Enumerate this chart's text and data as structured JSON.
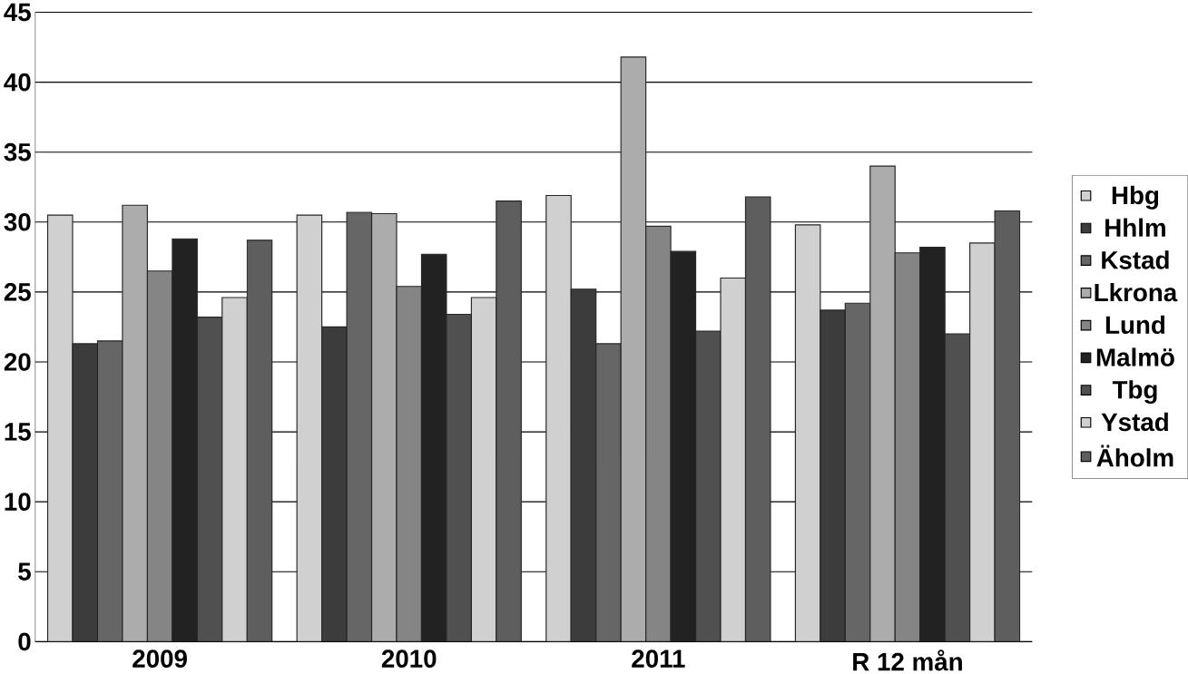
{
  "chart_data": {
    "type": "bar",
    "categories": [
      "2009",
      "2010",
      "2011",
      "R 12 mån"
    ],
    "series": [
      {
        "name": "Hbg",
        "color": "#d0d0d0",
        "values": [
          30.5,
          30.5,
          31.9,
          29.8
        ]
      },
      {
        "name": "Hhlm",
        "color": "#3c3c3c",
        "values": [
          21.3,
          22.5,
          25.2,
          23.7
        ]
      },
      {
        "name": "Kstad",
        "color": "#666666",
        "values": [
          21.5,
          30.7,
          21.3,
          24.2
        ]
      },
      {
        "name": "Lkrona",
        "color": "#acacac",
        "values": [
          31.2,
          30.6,
          41.8,
          34.0
        ]
      },
      {
        "name": "Lund",
        "color": "#858585",
        "values": [
          26.5,
          25.4,
          29.7,
          27.8
        ]
      },
      {
        "name": "Malmö",
        "color": "#222222",
        "values": [
          28.8,
          27.7,
          27.9,
          28.2
        ]
      },
      {
        "name": "Tbg",
        "color": "#505050",
        "values": [
          23.2,
          23.4,
          22.2,
          22.0
        ]
      },
      {
        "name": "Ystad",
        "color": "#d0d0d0",
        "values": [
          24.6,
          24.6,
          26.0,
          28.5
        ]
      },
      {
        "name": "Äholm",
        "color": "#5e5e5e",
        "values": [
          28.7,
          31.5,
          31.8,
          30.8
        ]
      }
    ],
    "ylim": [
      0,
      45
    ],
    "yticks": [
      0,
      5,
      10,
      15,
      20,
      25,
      30,
      35,
      40,
      45
    ],
    "grid": "y",
    "legend": "right"
  }
}
